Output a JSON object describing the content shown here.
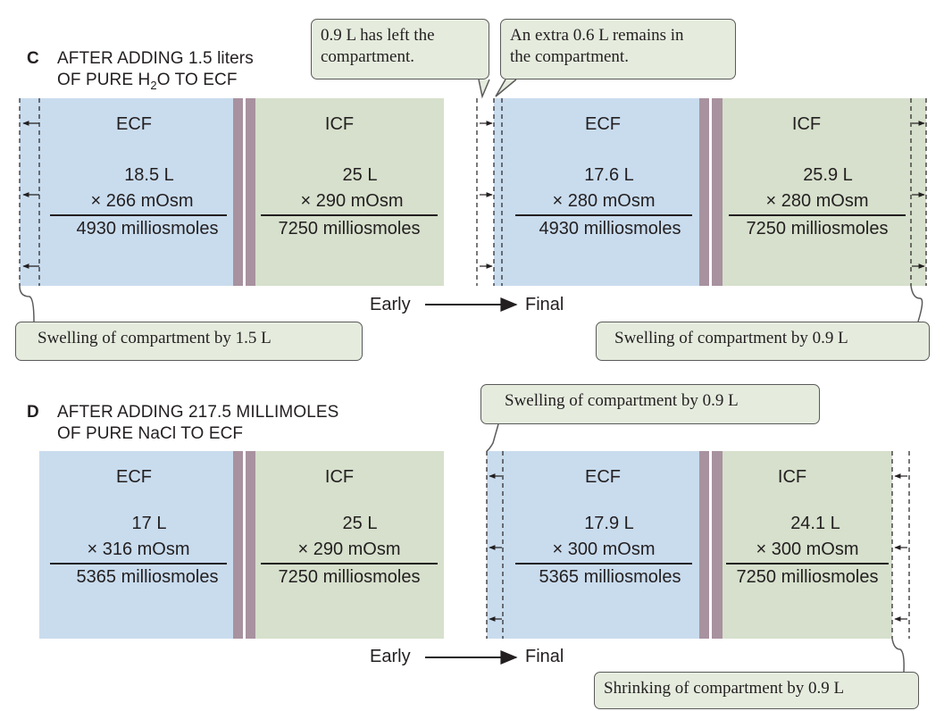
{
  "panel_c": {
    "letter": "C",
    "title_line1": "AFTER ADDING 1.5 liters",
    "title_line2_pre": "OF PURE H",
    "title_line2_sub": "2",
    "title_line2_post": "O TO ECF",
    "early": {
      "ecf": {
        "label": "ECF",
        "volume": "18.5 L",
        "osm": "× 266 mOsm",
        "total": "4930 milliosmoles"
      },
      "icf": {
        "label": "ICF",
        "volume": "25 L",
        "osm": "× 290 mOsm",
        "total": "7250 milliosmoles"
      }
    },
    "final": {
      "ecf": {
        "label": "ECF",
        "volume": "17.6 L",
        "osm": "× 280 mOsm",
        "total": "4930 milliosmoles"
      },
      "icf": {
        "label": "ICF",
        "volume": "25.9 L",
        "osm": "× 280 mOsm",
        "total": "7250 milliosmoles"
      }
    },
    "flow": {
      "early": "Early",
      "final": "Final"
    },
    "callouts": {
      "left_top": "0.9 L has left the\ncompartment.",
      "right_top": "An extra 0.6 L remains in\nthe compartment.",
      "bottom_left": "Swelling of compartment by 1.5 L",
      "bottom_right": "Swelling of compartment by 0.9 L"
    }
  },
  "panel_d": {
    "letter": "D",
    "title_line1": "AFTER ADDING 217.5 MILLIMOLES",
    "title_line2": "OF PURE NaCl TO ECF",
    "early": {
      "ecf": {
        "label": "ECF",
        "volume": "17 L",
        "osm": "× 316 mOsm",
        "total": "5365 milliosmoles"
      },
      "icf": {
        "label": "ICF",
        "volume": "25 L",
        "osm": "× 290 mOsm",
        "total": "7250 milliosmoles"
      }
    },
    "final": {
      "ecf": {
        "label": "ECF",
        "volume": "17.9 L",
        "osm": "× 300 mOsm",
        "total": "5365 milliosmoles"
      },
      "icf": {
        "label": "ICF",
        "volume": "24.1 L",
        "osm": "× 300 mOsm",
        "total": "7250 milliosmoles"
      }
    },
    "flow": {
      "early": "Early",
      "final": "Final"
    },
    "callouts": {
      "top": "Swelling of compartment by 0.9 L",
      "bottom": "Shrinking of compartment by 0.9 L"
    }
  },
  "colors": {
    "ecf": "#c9dcee",
    "icf": "#d6e0cc",
    "membrane": "#a8929f",
    "callout_fill": "#e5ecde"
  }
}
